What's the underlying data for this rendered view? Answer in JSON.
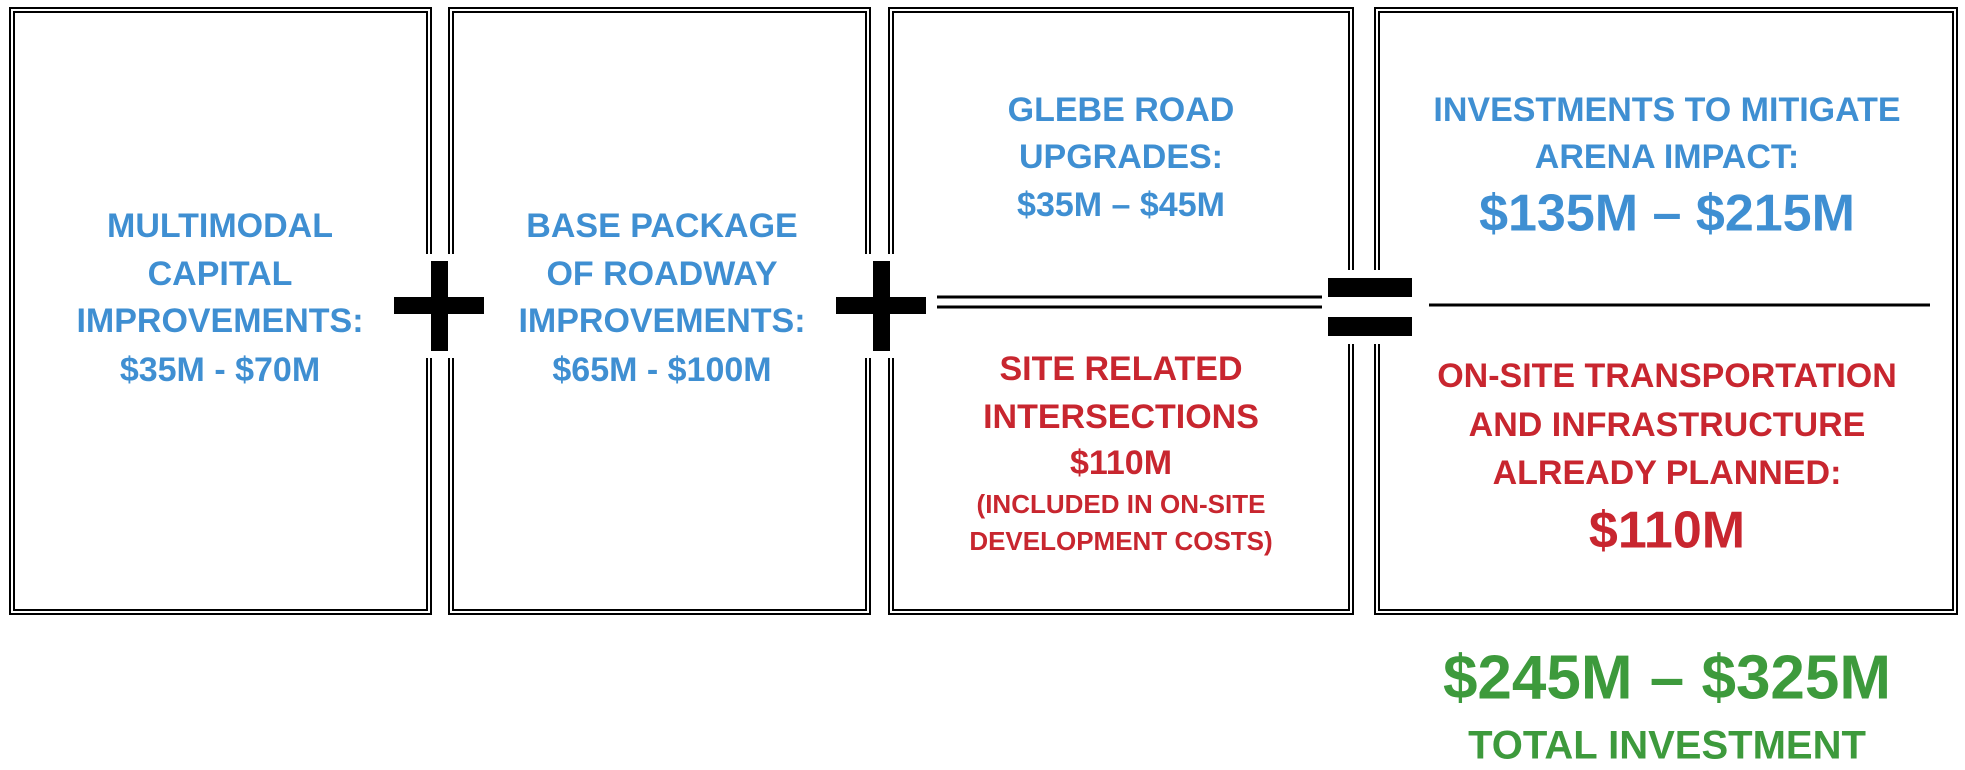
{
  "panels": [
    {
      "lines": [
        "MULTIMODAL",
        "CAPITAL",
        "IMPROVEMENTS:",
        "$35M - $70M"
      ]
    },
    {
      "lines": [
        "BASE PACKAGE",
        "OF ROADWAY",
        "IMPROVEMENTS:",
        "$65M - $100M"
      ]
    },
    {
      "top": [
        "GLEBE ROAD",
        "UPGRADES:",
        "$35M – $45M"
      ],
      "bottom": [
        "SITE RELATED",
        "INTERSECTIONS",
        "$110M"
      ],
      "note": [
        "(INCLUDED IN ON-SITE",
        "DEVELOPMENT COSTS)"
      ]
    },
    {
      "top": [
        "INVESTMENTS TO MITIGATE",
        "ARENA IMPACT:"
      ],
      "top_amount": "$135M – $215M",
      "bottom": [
        "ON-SITE TRANSPORTATION",
        "AND INFRASTRUCTURE",
        "ALREADY PLANNED:"
      ],
      "bottom_amount": "$110M"
    }
  ],
  "total": {
    "amount": "$245M – $325M",
    "label": "TOTAL INVESTMENT"
  }
}
